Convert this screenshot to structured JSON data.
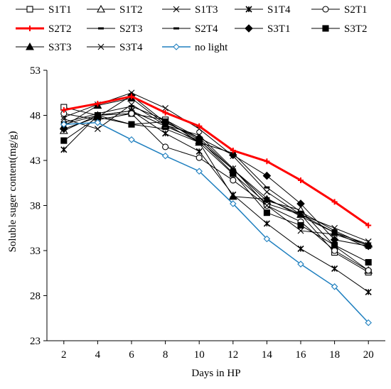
{
  "chart_data": {
    "type": "line",
    "title": "",
    "xlabel": "Days in HP",
    "ylabel": "Soluble suger content(mg/g)",
    "x": [
      2,
      4,
      6,
      8,
      10,
      12,
      14,
      16,
      18,
      20
    ],
    "xlim": [
      1,
      21
    ],
    "ylim": [
      23,
      53
    ],
    "yticks": [
      23,
      28,
      33,
      38,
      43,
      48,
      53
    ],
    "grid": false,
    "legend_position": "top",
    "series": [
      {
        "name": "S1T1",
        "color": "#000000",
        "width": 1,
        "marker": "square-open",
        "highlight": false,
        "values": [
          48.9,
          48.0,
          48.2,
          47.5,
          45.0,
          41.5,
          38.2,
          37.0,
          32.8,
          30.6
        ]
      },
      {
        "name": "S1T2",
        "color": "#000000",
        "width": 1,
        "marker": "triangle-open",
        "highlight": false,
        "values": [
          46.3,
          48.0,
          48.5,
          46.8,
          45.2,
          42.0,
          38.5,
          37.5,
          33.5,
          30.8
        ]
      },
      {
        "name": "S1T3",
        "color": "#000000",
        "width": 1,
        "marker": "x",
        "highlight": false,
        "values": [
          47.8,
          49.2,
          50.5,
          48.8,
          46.5,
          43.5,
          39.5,
          37.0,
          35.5,
          34.0
        ]
      },
      {
        "name": "S1T4",
        "color": "#000000",
        "width": 1,
        "marker": "star",
        "highlight": false,
        "values": [
          44.2,
          48.0,
          48.5,
          46.0,
          44.0,
          39.2,
          36.0,
          33.2,
          31.0,
          28.4
        ]
      },
      {
        "name": "S2T1",
        "color": "#000000",
        "width": 1,
        "marker": "circle-open",
        "highlight": false,
        "values": [
          48.2,
          47.5,
          48.2,
          44.5,
          43.3,
          40.8,
          38.0,
          36.2,
          33.0,
          30.8
        ]
      },
      {
        "name": "S2T2",
        "color": "#ff0000",
        "width": 3,
        "marker": "plus",
        "highlight": true,
        "values": [
          48.6,
          49.3,
          50.1,
          48.3,
          46.8,
          44.1,
          42.9,
          40.8,
          38.4,
          35.8
        ]
      },
      {
        "name": "S2T3",
        "color": "#000000",
        "width": 1,
        "marker": "dash",
        "highlight": false,
        "values": [
          47.2,
          48.2,
          49.0,
          47.5,
          45.5,
          42.0,
          38.8,
          36.8,
          35.0,
          33.3
        ]
      },
      {
        "name": "S2T4",
        "color": "#000000",
        "width": 1,
        "marker": "dash",
        "highlight": false,
        "values": [
          47.0,
          48.0,
          47.0,
          46.5,
          45.0,
          43.8,
          40.0,
          37.3,
          35.2,
          33.5
        ]
      },
      {
        "name": "S3T1",
        "color": "#000000",
        "width": 1,
        "marker": "diamond",
        "highlight": false,
        "values": [
          46.5,
          47.8,
          50.2,
          47.2,
          45.5,
          43.6,
          41.3,
          38.2,
          34.2,
          33.5
        ]
      },
      {
        "name": "S3T2",
        "color": "#000000",
        "width": 1,
        "marker": "square",
        "highlight": false,
        "values": [
          45.2,
          47.8,
          47.0,
          47.3,
          45.3,
          41.6,
          37.2,
          35.8,
          33.6,
          31.7
        ]
      },
      {
        "name": "S3T3",
        "color": "#000000",
        "width": 1,
        "marker": "triangle",
        "highlight": false,
        "values": [
          46.8,
          49.1,
          49.9,
          47.0,
          45.0,
          39.0,
          38.7,
          37.0,
          35.0,
          33.7
        ]
      },
      {
        "name": "S3T4",
        "color": "#000000",
        "width": 1,
        "marker": "x",
        "highlight": false,
        "values": [
          47.6,
          46.5,
          49.2,
          46.9,
          45.8,
          42.1,
          38.0,
          35.2,
          34.8,
          33.6
        ]
      },
      {
        "name": "no light",
        "color": "#1e7fbf",
        "width": 1.5,
        "marker": "diamond-open",
        "highlight": false,
        "values": [
          47.0,
          47.2,
          45.3,
          43.5,
          41.8,
          38.2,
          34.3,
          31.5,
          29.0,
          25.0
        ]
      }
    ]
  }
}
